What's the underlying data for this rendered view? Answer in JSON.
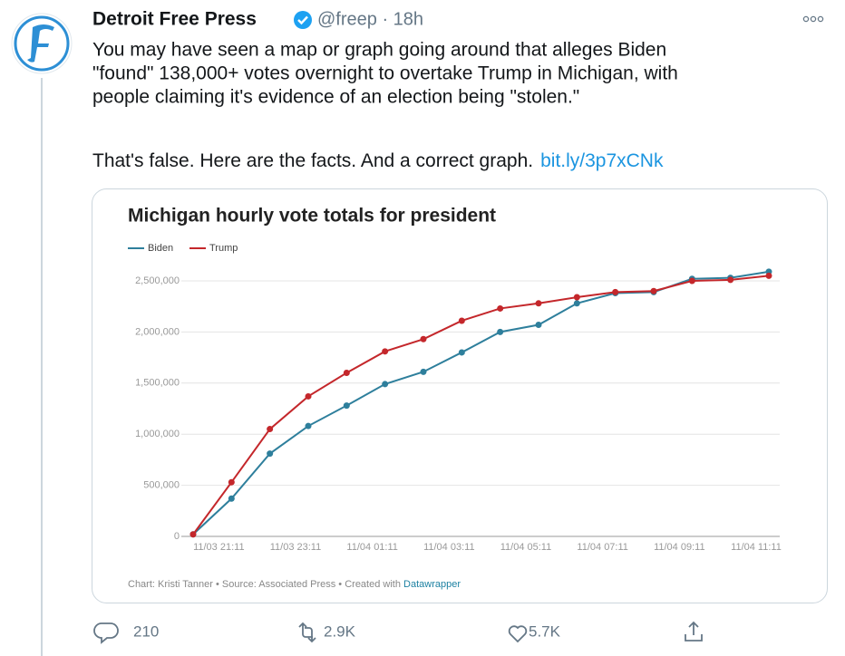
{
  "tweet": {
    "name": "Detroit Free Press",
    "meta": "@freep · 18h",
    "text_lines": [
      "You may have seen a map or graph going around that alleges Biden",
      "\"found\" 138,000+ votes overnight to overtake Trump in Michigan, with",
      "people claiming it's evidence of an election being \"stolen.\""
    ],
    "text_end": "That's false. Here are the facts. And a correct graph.",
    "link": "bit.ly/3p7xCNk",
    "replies": "210",
    "retweets": "2.9K",
    "likes": "5.7K"
  },
  "chart_data": {
    "type": "line",
    "title": "Michigan hourly vote totals for president",
    "categories": [
      null,
      "11/03 21:11",
      null,
      "11/03 23:11",
      null,
      "11/04 01:11",
      null,
      "11/04 03:11",
      null,
      "11/04 05:11",
      null,
      "11/04 07:11",
      null,
      "11/04 09:11",
      null,
      "11/04 11:11"
    ],
    "series": [
      {
        "name": "Biden",
        "color": "#2e7f9c",
        "values": [
          20000,
          370000,
          810000,
          1080000,
          1280000,
          1490000,
          1610000,
          1800000,
          2000000,
          2070000,
          2280000,
          2380000,
          2390000,
          2520000,
          2530000,
          2590000
        ]
      },
      {
        "name": "Trump",
        "color": "#c4272b",
        "values": [
          20000,
          530000,
          1050000,
          1370000,
          1600000,
          1810000,
          1930000,
          2110000,
          2230000,
          2280000,
          2340000,
          2390000,
          2400000,
          2500000,
          2510000,
          2550000
        ]
      }
    ],
    "ylim": [
      0,
      2600000
    ],
    "yticks": [
      0,
      {
        "value": 500000,
        "label": "500,000"
      },
      {
        "value": 1000000,
        "label": "1,000,000"
      },
      {
        "value": 1500000,
        "label": "1,500,000"
      },
      {
        "value": 2000000,
        "label": "2,000,000"
      },
      {
        "value": 2500000,
        "label": "2,500,000"
      }
    ],
    "grid": true,
    "footer": "Chart: Kristi Tanner • Source: Associated Press • Created with ",
    "footer_link": "Datawrapper"
  }
}
